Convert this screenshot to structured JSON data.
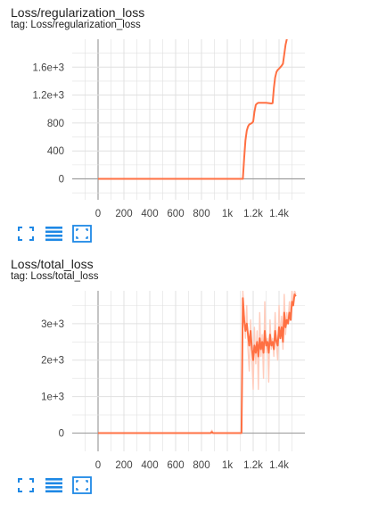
{
  "colors": {
    "accent": "#ff7043",
    "smoothed_faint": "#ffccbc",
    "grid": "#e0e0e0",
    "axis": "#9e9e9e",
    "icon": "#1e88e5"
  },
  "icons": [
    "fullscreen-icon",
    "toggle-y-log-icon",
    "fit-domain-icon"
  ],
  "cards": [
    {
      "title": "Loss/regularization_loss",
      "tag": "tag: Loss/regularization_loss"
    },
    {
      "title": "Loss/total_loss",
      "tag": "tag: Loss/total_loss"
    }
  ],
  "chart_data": [
    {
      "type": "line",
      "title": "Loss/regularization_loss",
      "xlabel": "",
      "ylabel": "",
      "grid": true,
      "xlim": [
        -200,
        1600
      ],
      "ylim": [
        -300,
        2000
      ],
      "x_ticks": [
        0,
        200,
        400,
        600,
        800,
        1000,
        1200,
        1400
      ],
      "x_tick_labels": [
        "0",
        "200",
        "400",
        "600",
        "800",
        "1k",
        "1.2k",
        "1.4k"
      ],
      "y_ticks": [
        0,
        400,
        800,
        1200,
        1600
      ],
      "y_tick_labels": [
        "0",
        "400",
        "800",
        "1.2e+3",
        "1.6e+3"
      ],
      "series": [
        {
          "color": "#ff7043",
          "x": [
            0,
            200,
            400,
            600,
            800,
            1000,
            1100,
            1120,
            1130,
            1140,
            1150,
            1160,
            1170,
            1180,
            1190,
            1200,
            1210,
            1220,
            1230,
            1240,
            1250,
            1260,
            1280,
            1300,
            1320,
            1340,
            1350,
            1360,
            1370,
            1380,
            1390,
            1400,
            1410,
            1420,
            1430,
            1440,
            1450,
            1460,
            1470,
            1480,
            1490,
            1500
          ],
          "y": [
            0,
            0,
            0,
            0,
            0,
            0,
            0,
            0,
            300,
            550,
            690,
            750,
            780,
            790,
            800,
            820,
            960,
            1060,
            1080,
            1090,
            1090,
            1090,
            1090,
            1090,
            1085,
            1080,
            1085,
            1300,
            1450,
            1530,
            1560,
            1580,
            1600,
            1620,
            1650,
            1780,
            1920,
            2000,
            2100,
            2150,
            2200,
            2250
          ]
        }
      ]
    },
    {
      "type": "line",
      "title": "Loss/total_loss",
      "xlabel": "",
      "ylabel": "",
      "grid": true,
      "xlim": [
        -200,
        1600
      ],
      "ylim": [
        -500,
        3900
      ],
      "x_ticks": [
        0,
        200,
        400,
        600,
        800,
        1000,
        1200,
        1400
      ],
      "x_tick_labels": [
        "0",
        "200",
        "400",
        "600",
        "800",
        "1k",
        "1.2k",
        "1.4k"
      ],
      "y_ticks": [
        0,
        1000,
        2000,
        3000
      ],
      "y_tick_labels": [
        "0",
        "1e+3",
        "2e+3",
        "3e+3"
      ],
      "series": [
        {
          "name": "raw",
          "color": "#ffccbc",
          "x": [
            0,
            200,
            400,
            600,
            800,
            870,
            880,
            890,
            1000,
            1100,
            1110,
            1115,
            1120,
            1130,
            1140,
            1150,
            1160,
            1170,
            1180,
            1190,
            1200,
            1210,
            1220,
            1230,
            1240,
            1250,
            1260,
            1270,
            1280,
            1290,
            1300,
            1310,
            1320,
            1330,
            1340,
            1350,
            1360,
            1370,
            1380,
            1390,
            1400,
            1410,
            1420,
            1430,
            1440,
            1450,
            1460,
            1470,
            1480,
            1490,
            1500,
            1510,
            1520,
            1530
          ],
          "y": [
            0,
            0,
            0,
            0,
            0,
            0,
            80,
            0,
            0,
            0,
            0,
            2000,
            3900,
            3200,
            2600,
            3500,
            2300,
            1700,
            3100,
            2000,
            1200,
            2900,
            1900,
            2800,
            1200,
            3300,
            2100,
            2700,
            1500,
            3600,
            2200,
            2600,
            1400,
            3100,
            2300,
            2600,
            2100,
            3300,
            2400,
            2000,
            3500,
            2600,
            3200,
            2300,
            3800,
            2700,
            3300,
            3000,
            3600,
            3100,
            3900,
            3500,
            3900,
            3800
          ]
        },
        {
          "name": "smoothed",
          "color": "#ff7043",
          "x": [
            0,
            200,
            400,
            600,
            800,
            870,
            880,
            890,
            1000,
            1110,
            1115,
            1120,
            1130,
            1140,
            1150,
            1160,
            1170,
            1180,
            1190,
            1200,
            1210,
            1220,
            1230,
            1240,
            1250,
            1260,
            1270,
            1280,
            1290,
            1300,
            1310,
            1320,
            1330,
            1340,
            1350,
            1360,
            1370,
            1380,
            1390,
            1400,
            1410,
            1420,
            1430,
            1440,
            1450,
            1460,
            1470,
            1480,
            1490,
            1500,
            1510,
            1520,
            1530
          ],
          "y": [
            0,
            0,
            0,
            0,
            0,
            0,
            30,
            0,
            0,
            0,
            1900,
            3700,
            3100,
            2800,
            3000,
            2700,
            2400,
            2800,
            2300,
            2000,
            2400,
            2200,
            2500,
            2100,
            2600,
            2300,
            2500,
            2200,
            2800,
            2400,
            2500,
            2200,
            2700,
            2400,
            2500,
            2300,
            2800,
            2500,
            2400,
            2900,
            2600,
            2900,
            2500,
            3300,
            2900,
            3100,
            3000,
            3300,
            3100,
            3600,
            3500,
            3800,
            3750
          ]
        }
      ]
    }
  ]
}
